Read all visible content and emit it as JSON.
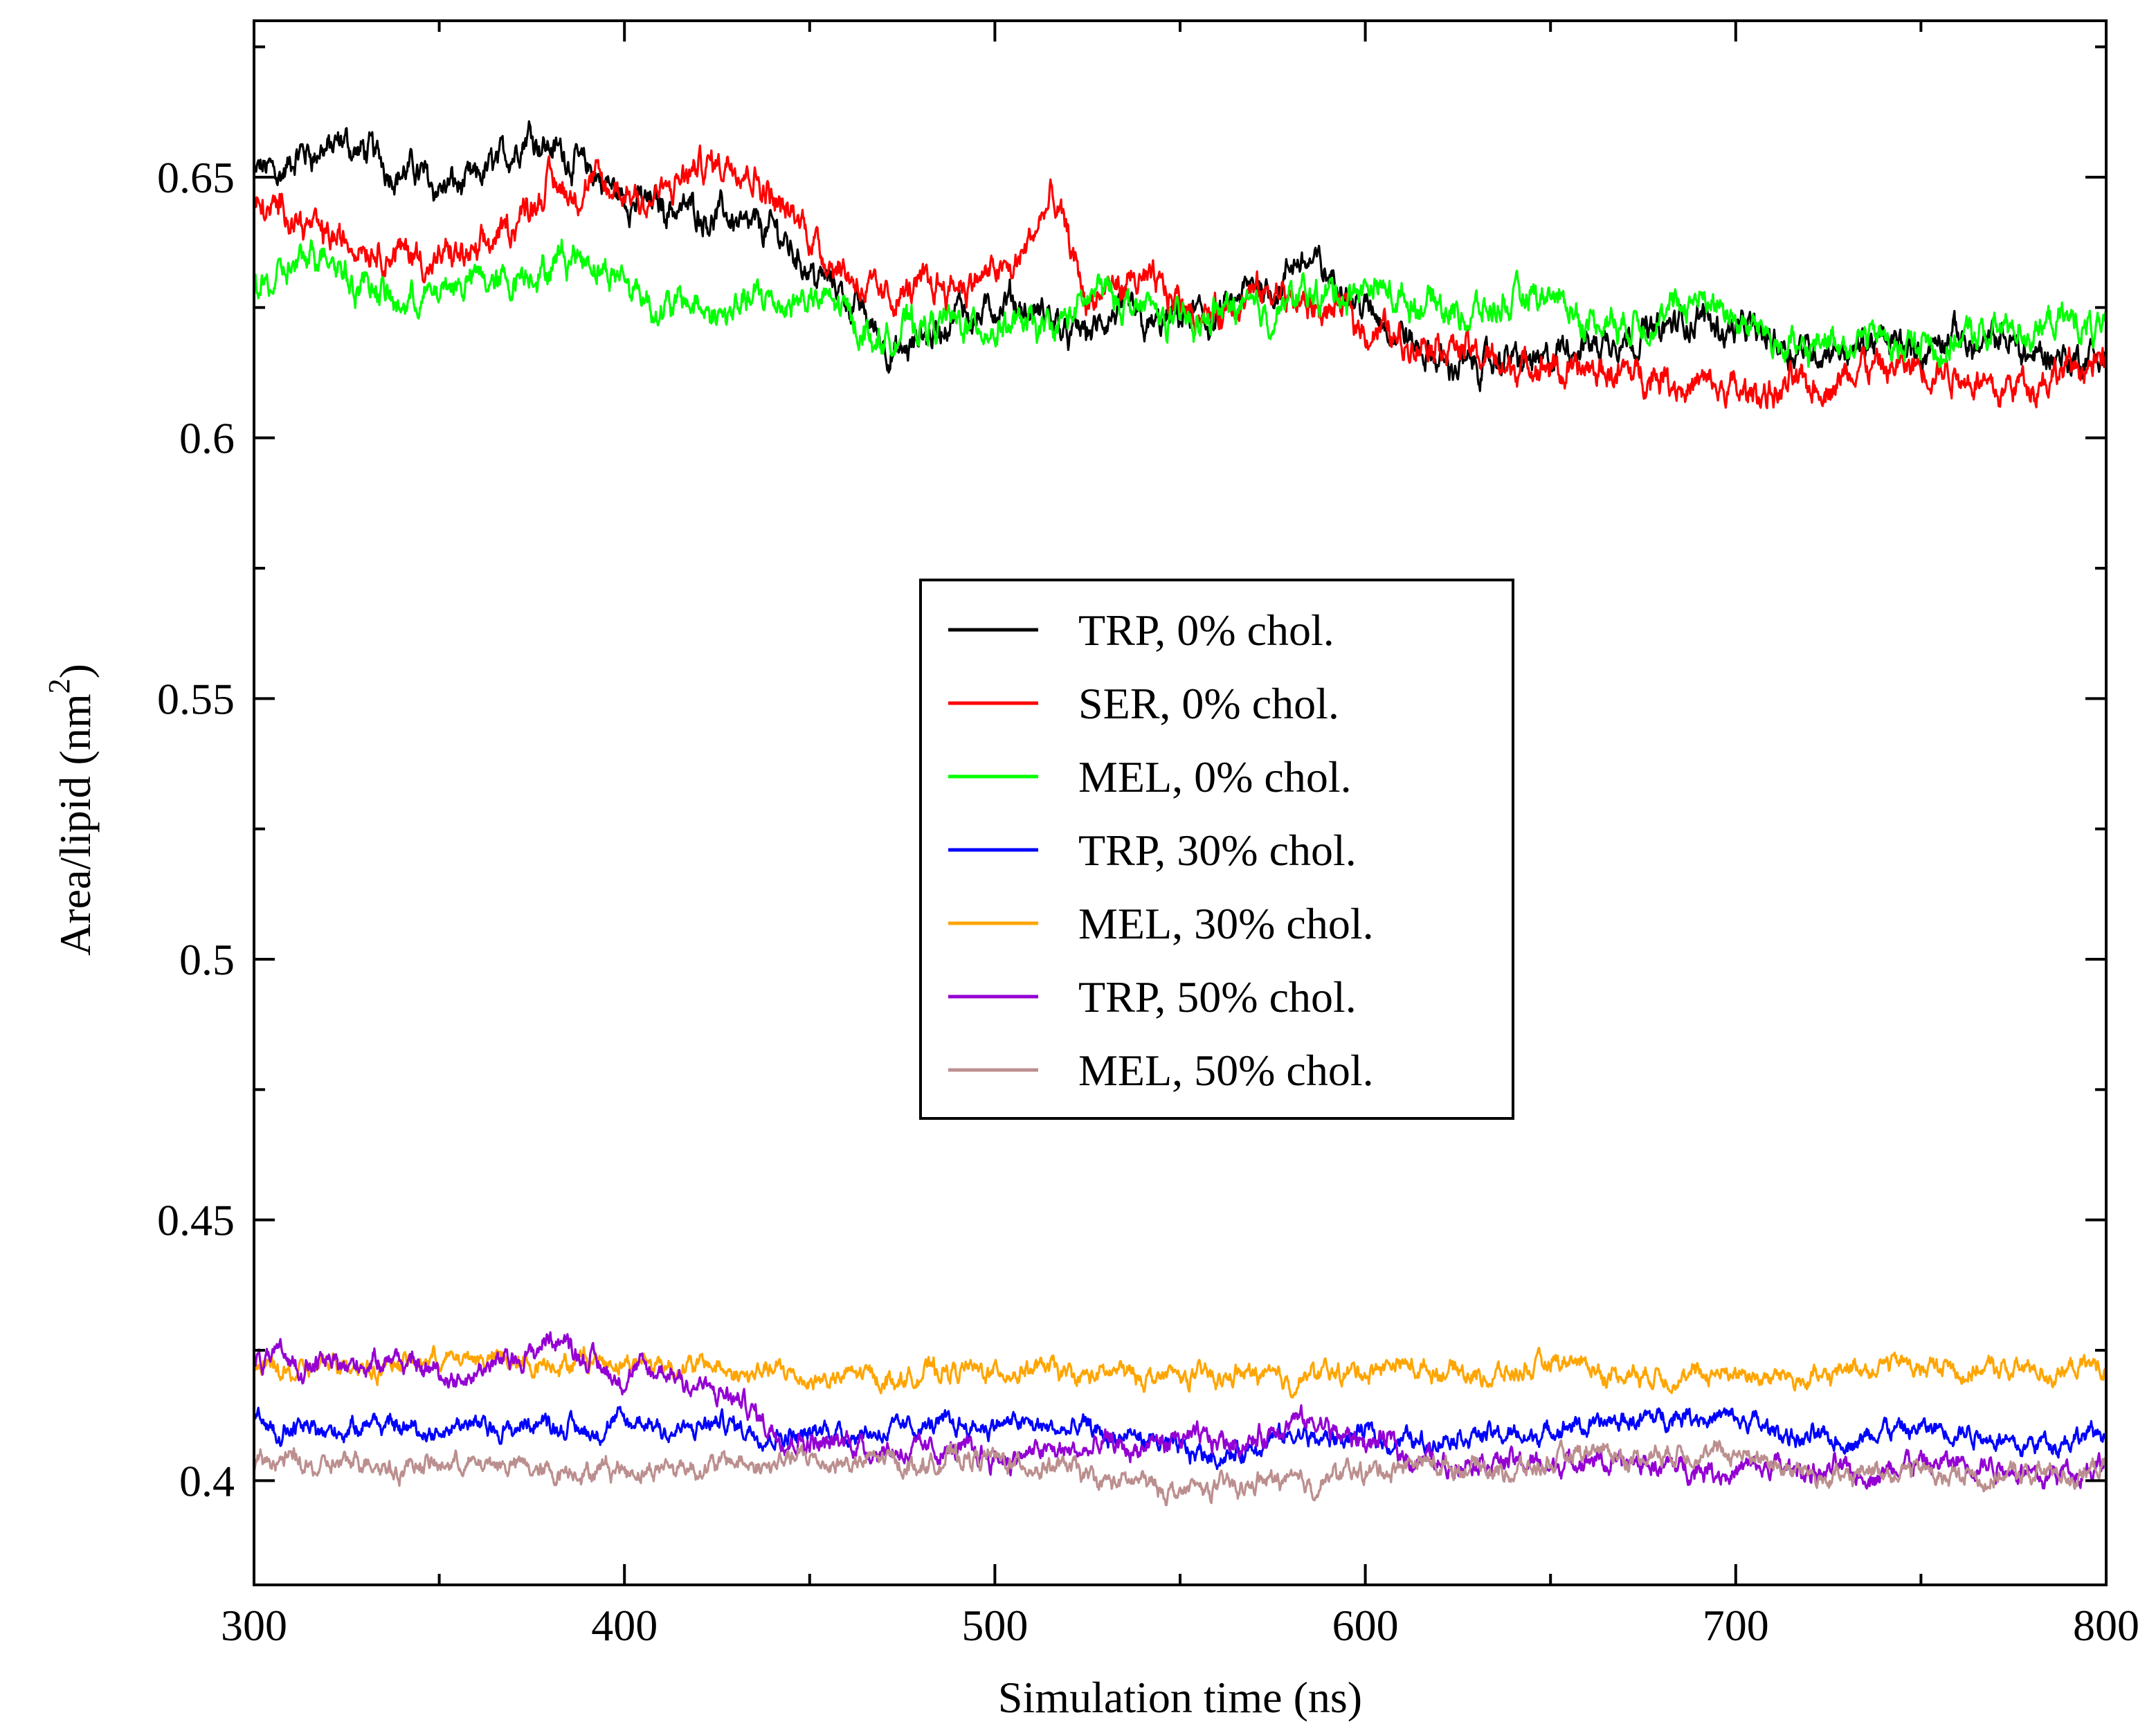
{
  "chart_data": {
    "type": "line",
    "title": "",
    "xlabel": "Simulation time (ns)",
    "ylabel": "Area/lipid (nm",
    "ylabel_superscript": "2",
    "ylabel_suffix": ")",
    "xlim": [
      300,
      800
    ],
    "ylim": [
      0.38,
      0.68
    ],
    "xticks": [
      300,
      400,
      500,
      600,
      700,
      800
    ],
    "xtick_labels": [
      "300",
      "400",
      "500",
      "600",
      "700",
      "800"
    ],
    "yticks": [
      0.4,
      0.45,
      0.5,
      0.55,
      0.6,
      0.65
    ],
    "ytick_labels": [
      "0.4",
      "0.45",
      "0.5",
      "0.55",
      "0.6",
      "0.65"
    ],
    "grid": false,
    "legend_position": "center",
    "series": [
      {
        "name": "TRP, 0% chol.",
        "color": "#000000",
        "noise": 0.004,
        "x": [
          300,
          320,
          340,
          360,
          375,
          385,
          400,
          420,
          440,
          460,
          475,
          490,
          500,
          520,
          540,
          560,
          585,
          600,
          620,
          650,
          680,
          700,
          730,
          760,
          800
        ],
        "y": [
          0.65,
          0.655,
          0.652,
          0.648,
          0.66,
          0.655,
          0.645,
          0.645,
          0.64,
          0.628,
          0.615,
          0.623,
          0.625,
          0.62,
          0.622,
          0.622,
          0.634,
          0.625,
          0.613,
          0.615,
          0.622,
          0.622,
          0.617,
          0.618,
          0.615
        ]
      },
      {
        "name": "SER, 0% chol.",
        "color": "#ff0000",
        "noise": 0.004,
        "x": [
          300,
          320,
          340,
          360,
          380,
          400,
          420,
          432,
          450,
          470,
          490,
          505,
          515,
          525,
          540,
          560,
          580,
          600,
          620,
          650,
          680,
          700,
          730,
          760,
          800
        ],
        "y": [
          0.645,
          0.64,
          0.635,
          0.633,
          0.65,
          0.645,
          0.65,
          0.655,
          0.64,
          0.628,
          0.632,
          0.632,
          0.645,
          0.625,
          0.628,
          0.625,
          0.625,
          0.622,
          0.618,
          0.612,
          0.612,
          0.608,
          0.612,
          0.612,
          0.612
        ]
      },
      {
        "name": "MEL, 0% chol.",
        "color": "#00ff00",
        "noise": 0.004,
        "x": [
          300,
          320,
          340,
          360,
          390,
          410,
          430,
          450,
          470,
          490,
          510,
          530,
          550,
          570,
          590,
          610,
          640,
          670,
          690,
          720,
          750,
          780,
          800
        ],
        "y": [
          0.63,
          0.635,
          0.625,
          0.63,
          0.635,
          0.625,
          0.625,
          0.628,
          0.62,
          0.622,
          0.62,
          0.628,
          0.622,
          0.626,
          0.628,
          0.626,
          0.625,
          0.622,
          0.626,
          0.618,
          0.618,
          0.622,
          0.62
        ]
      },
      {
        "name": "TRP, 30% chol.",
        "color": "#0000ff",
        "noise": 0.0025,
        "x": [
          300,
          350,
          400,
          450,
          500,
          550,
          600,
          650,
          690,
          720,
          750,
          800
        ],
        "y": [
          0.411,
          0.411,
          0.41,
          0.41,
          0.412,
          0.405,
          0.408,
          0.409,
          0.413,
          0.408,
          0.409,
          0.408
        ]
      },
      {
        "name": "MEL, 30% chol.",
        "color": "#ffa500",
        "noise": 0.0025,
        "x": [
          300,
          350,
          400,
          450,
          500,
          550,
          600,
          650,
          700,
          750,
          800
        ],
        "y": [
          0.421,
          0.423,
          0.423,
          0.42,
          0.421,
          0.42,
          0.421,
          0.421,
          0.42,
          0.422,
          0.421
        ]
      },
      {
        "name": "TRP, 50% chol.",
        "color": "#9400d3",
        "noise": 0.0028,
        "x": [
          300,
          330,
          360,
          380,
          400,
          420,
          440,
          460,
          500,
          540,
          580,
          620,
          660,
          700,
          740,
          800
        ],
        "y": [
          0.423,
          0.424,
          0.421,
          0.427,
          0.42,
          0.419,
          0.41,
          0.408,
          0.406,
          0.405,
          0.41,
          0.404,
          0.403,
          0.402,
          0.402,
          0.403
        ]
      },
      {
        "name": "MEL, 50% chol.",
        "color": "#bc8f8f",
        "noise": 0.0025,
        "x": [
          300,
          350,
          400,
          450,
          500,
          550,
          600,
          650,
          690,
          720,
          760,
          800
        ],
        "y": [
          0.403,
          0.403,
          0.402,
          0.404,
          0.404,
          0.398,
          0.402,
          0.403,
          0.406,
          0.402,
          0.401,
          0.402
        ]
      }
    ]
  }
}
